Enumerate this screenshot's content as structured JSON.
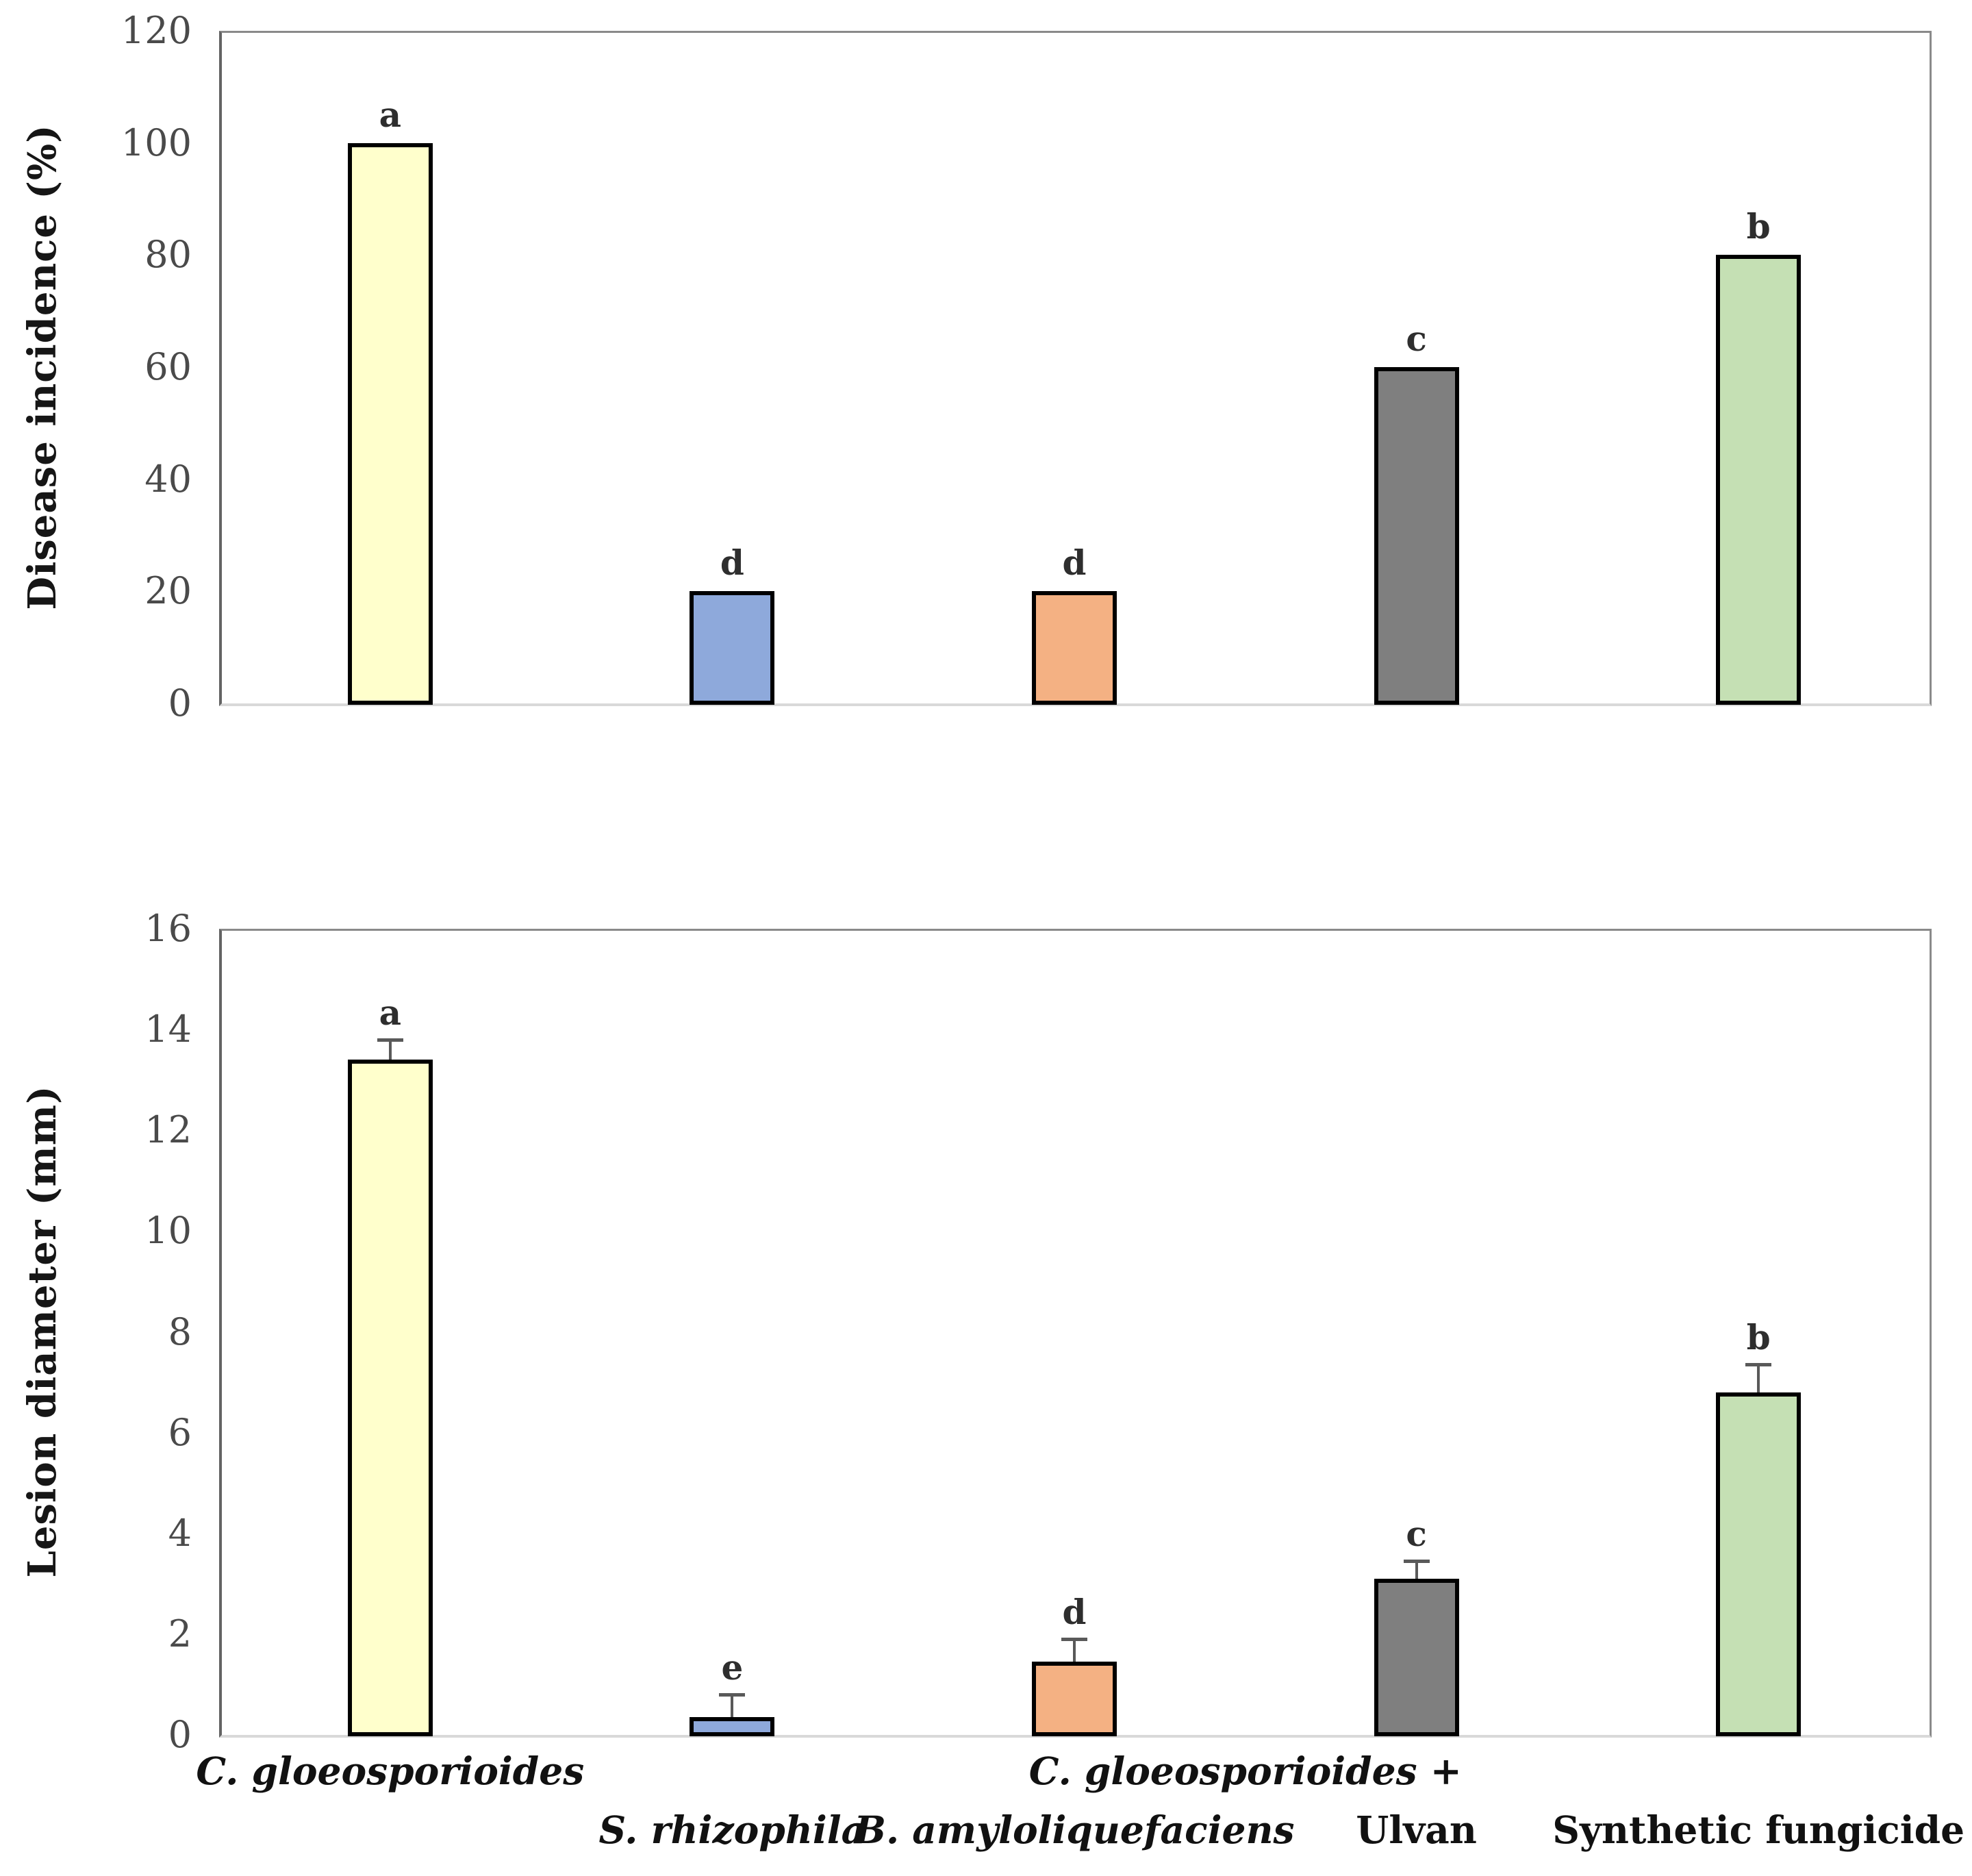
{
  "figure": {
    "background": "#ffffff",
    "bar_border_color": "#000000",
    "error_bar_color": "#595959",
    "axis_line_color": "#636363",
    "plot_border_color": "#8a8a8a",
    "baseline_color": "#d9d9d9",
    "tick_text_color": "#4a4a4a"
  },
  "chart_data": [
    {
      "type": "bar",
      "title": "",
      "ylabel": "Disease incidence (%)",
      "xlabel": "",
      "categories": [
        "C. gloeosporioides",
        "C. gloeosporioides + S. rhizophila",
        "C. gloeosporioides + B. amyloliquefaciens",
        "C. gloeosporioides + Ulvan",
        "C. gloeosporioides + Synthetic fungicide"
      ],
      "values": [
        100,
        20,
        20,
        60,
        80
      ],
      "errors": [
        0,
        0,
        0,
        0,
        0
      ],
      "significance_letters": [
        "a",
        "d",
        "d",
        "c",
        "b"
      ],
      "ylim": [
        0,
        120
      ],
      "yticks": [
        0,
        20,
        40,
        60,
        80,
        100,
        120
      ],
      "grid": false,
      "legend": null,
      "bar_colors": [
        "#FFFFCC",
        "#8EA9DB",
        "#F4B183",
        "#7F7F7F",
        "#C5E0B4"
      ]
    },
    {
      "type": "bar",
      "title": "",
      "ylabel": "Lesion diameter (mm)",
      "xlabel": "",
      "categories": [
        "C. gloeosporioides",
        "C. gloeosporioides + S. rhizophila",
        "C. gloeosporioides + B. amyloliquefaciens",
        "C. gloeosporioides + Ulvan",
        "C. gloeosporioides + Synthetic fungicide"
      ],
      "values": [
        13.4,
        0.35,
        1.45,
        3.1,
        6.8
      ],
      "errors": [
        0.4,
        0.45,
        0.45,
        0.35,
        0.55
      ],
      "significance_letters": [
        "a",
        "e",
        "d",
        "c",
        "b"
      ],
      "ylim": [
        0,
        16
      ],
      "yticks": [
        0,
        2,
        4,
        6,
        8,
        10,
        12,
        14,
        16
      ],
      "grid": false,
      "legend": null,
      "bar_colors": [
        "#FFFFCC",
        "#8EA9DB",
        "#F4B183",
        "#7F7F7F",
        "#C5E0B4"
      ]
    }
  ],
  "xaxis": {
    "row1": [
      {
        "text": "C. gloeosporioides",
        "italic": true,
        "slot": 0
      },
      {
        "text": "C. gloeosporioides +",
        "italic": true,
        "center_slots": [
          1,
          4
        ]
      }
    ],
    "row2": [
      {
        "text": "S. rhizophila",
        "italic": true,
        "slot": 1
      },
      {
        "text": "B. amyloliquefaciens",
        "italic": true,
        "slot": 2
      },
      {
        "text": "Ulvan",
        "italic": false,
        "slot": 3
      },
      {
        "text": "Synthetic fungicide",
        "italic": false,
        "slot": 4
      }
    ]
  }
}
